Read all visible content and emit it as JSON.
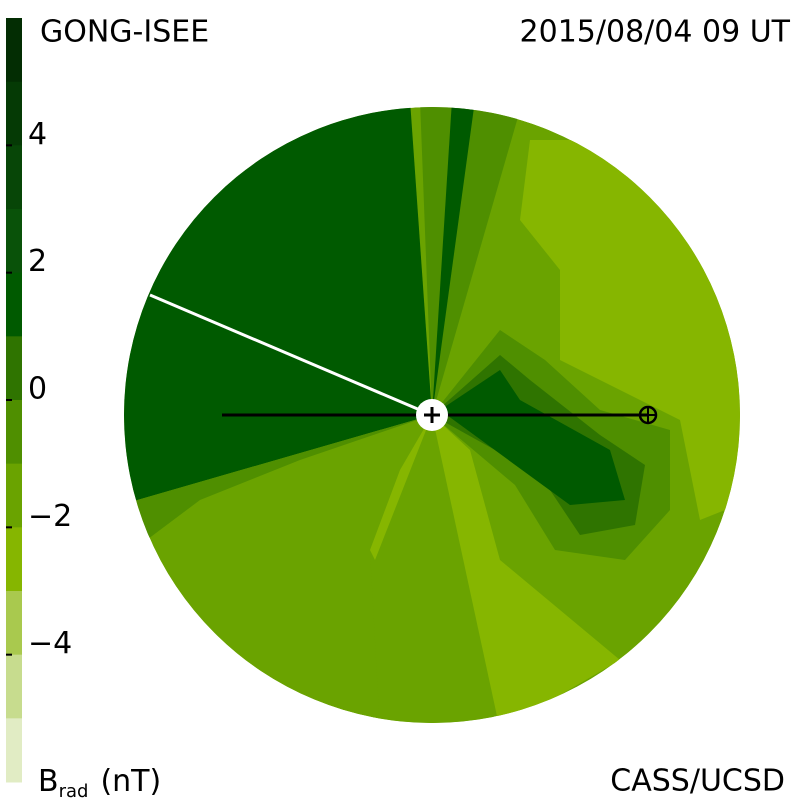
{
  "header": {
    "left": "GONG-ISEE",
    "right": "2015/08/04 09 UT"
  },
  "footer": {
    "right": "CASS/UCSD"
  },
  "colorbar": {
    "label": {
      "symbol": "B",
      "subscript": "rad",
      "unit": "(nT)"
    },
    "lim": [
      -6,
      6
    ],
    "ticks": [
      4,
      2,
      0,
      {
        "value": -2,
        "label": "−2"
      },
      {
        "value": -4,
        "label": "−4"
      }
    ],
    "colors": [
      "#032d03",
      "#053a05",
      "#074607",
      "#095209",
      "#005a00",
      "#2f7400",
      "#4f8f00",
      "#6aa300",
      "#86b600",
      "#a9c94e",
      "#c7dc8e",
      "#e1ecc4"
    ]
  }
}
